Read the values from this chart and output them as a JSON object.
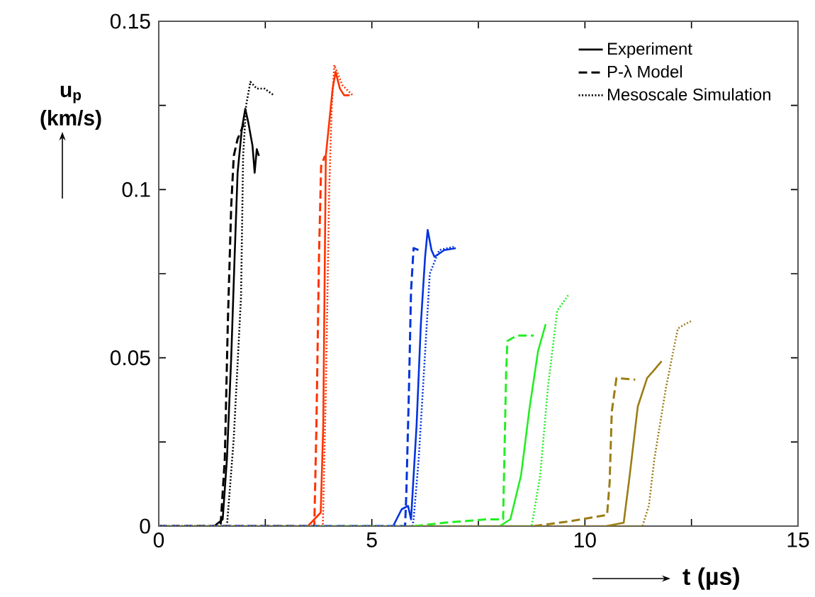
{
  "chart_data": {
    "type": "line",
    "xlabel": "t (µs)",
    "ylabel": "u$_{p}$ (km/s)",
    "xlim": [
      0,
      15
    ],
    "ylim": [
      0,
      0.15
    ],
    "xticks": [
      0,
      {
        "value": 2.5,
        "label": null
      },
      5,
      {
        "value": 7.5,
        "label": null
      },
      10,
      {
        "value": 12.5,
        "label": null
      },
      15
    ],
    "yticks": [
      0,
      {
        "value": 0.025,
        "label": null
      },
      0.05,
      {
        "value": 0.075,
        "label": null
      },
      0.1,
      {
        "value": 0.125,
        "label": null
      },
      0.15
    ],
    "legend": "top right",
    "marker": "none",
    "series": [
      {
        "name": "Experiment",
        "color": "#000000",
        "line_style": "solid",
        "x": [
          1.3,
          1.5,
          1.6,
          1.7,
          1.78,
          1.85,
          1.95,
          2.03,
          2.1,
          2.2,
          2.25,
          2.3,
          2.35
        ],
        "values": [
          0,
          0.002,
          0.02,
          0.05,
          0.08,
          0.105,
          0.118,
          0.124,
          0.12,
          0.113,
          0.105,
          0.112,
          0.11
        ]
      },
      {
        "name": "P-λ Model",
        "color": "#000000",
        "line_style": "dashed",
        "x": [
          0,
          1.45,
          1.55,
          1.62,
          1.7,
          1.76,
          1.85,
          1.95,
          2.0
        ],
        "values": [
          0,
          0,
          0.02,
          0.06,
          0.095,
          0.11,
          0.115,
          0.118,
          0.12
        ]
      },
      {
        "name": "Mesoscale Simulation",
        "color": "#000000",
        "line_style": "dotted",
        "x": [
          0,
          1.6,
          1.76,
          1.93,
          1.98,
          2.05,
          2.15,
          2.3,
          2.48,
          2.7
        ],
        "values": [
          0,
          0,
          0.026,
          0.068,
          0.11,
          0.125,
          0.132,
          0.13,
          0.13,
          0.128
        ]
      },
      {
        "color": "#ff3300",
        "line_style": "solid",
        "x": [
          3.5,
          3.8,
          3.86,
          3.92,
          4.0,
          4.08,
          4.15,
          4.25,
          4.35,
          4.48
        ],
        "values": [
          0,
          0.004,
          0.03,
          0.11,
          0.12,
          0.13,
          0.135,
          0.13,
          0.128,
          0.128
        ]
      },
      {
        "color": "#ff3300",
        "line_style": "dashed",
        "x": [
          0,
          3.65,
          3.7,
          3.76,
          3.81,
          3.9
        ],
        "values": [
          0,
          0,
          0.03,
          0.08,
          0.107,
          0.11
        ]
      },
      {
        "color": "#ff3300",
        "line_style": "dotted",
        "x": [
          0,
          3.85,
          3.92,
          4.0,
          4.06,
          4.12,
          4.31,
          4.55
        ],
        "values": [
          0,
          0,
          0.04,
          0.1,
          0.125,
          0.137,
          0.131,
          0.128
        ]
      },
      {
        "color": "#0033dd",
        "line_style": "solid",
        "x": [
          5.5,
          5.7,
          5.85,
          5.92,
          6.05,
          6.15,
          6.25,
          6.31,
          6.4,
          6.47,
          6.7,
          6.97
        ],
        "values": [
          0,
          0.005,
          0.006,
          0.002,
          0.03,
          0.06,
          0.08,
          0.088,
          0.082,
          0.08,
          0.082,
          0.0826
        ]
      },
      {
        "color": "#0033dd",
        "line_style": "dashed",
        "x": [
          0,
          5.78,
          5.81,
          5.87,
          5.92,
          5.98,
          6.1
        ],
        "values": [
          0,
          0,
          0.01,
          0.04,
          0.07,
          0.0826,
          0.082
        ]
      },
      {
        "color": "#0033dd",
        "line_style": "dotted",
        "x": [
          0,
          5.95,
          5.98,
          6.1,
          6.2,
          6.36,
          6.58,
          6.92
        ],
        "values": [
          0,
          0,
          0.002,
          0.02,
          0.041,
          0.075,
          0.082,
          0.083
        ]
      },
      {
        "color": "#22ee22",
        "line_style": "solid",
        "x": [
          8.0,
          8.25,
          8.5,
          8.7,
          8.9,
          9.08
        ],
        "values": [
          0,
          0.002,
          0.015,
          0.035,
          0.052,
          0.06
        ]
      },
      {
        "color": "#22ee22",
        "line_style": "dashed",
        "x": [
          6.0,
          6.7,
          7.7,
          8.08,
          8.11,
          8.15,
          8.18,
          8.4,
          8.8
        ],
        "values": [
          0,
          0.001,
          0.002,
          0.002,
          0.02,
          0.045,
          0.055,
          0.0566,
          0.0566
        ]
      },
      {
        "color": "#22ee22",
        "line_style": "dotted",
        "x": [
          0,
          8.75,
          8.95,
          9.13,
          9.35,
          9.63
        ],
        "values": [
          0,
          0,
          0.015,
          0.041,
          0.064,
          0.069
        ]
      },
      {
        "color": "#9a7d14",
        "line_style": "solid",
        "x": [
          10.5,
          10.91,
          11.05,
          11.24,
          11.46,
          11.6,
          11.8
        ],
        "values": [
          0,
          0.001,
          0.015,
          0.0355,
          0.044,
          0.046,
          0.049
        ]
      },
      {
        "color": "#9a7d14",
        "line_style": "dashed",
        "x": [
          8.8,
          9.58,
          10.52,
          10.58,
          10.63,
          10.74,
          11.18
        ],
        "values": [
          0,
          0.0013,
          0.0033,
          0.013,
          0.034,
          0.044,
          0.0435
        ]
      },
      {
        "color": "#9a7d14",
        "line_style": "dotted",
        "x": [
          0,
          11.35,
          11.5,
          11.63,
          11.9,
          12.18,
          12.35,
          12.51
        ],
        "values": [
          0,
          0,
          0.006,
          0.02,
          0.041,
          0.0587,
          0.06,
          0.061
        ]
      }
    ]
  }
}
